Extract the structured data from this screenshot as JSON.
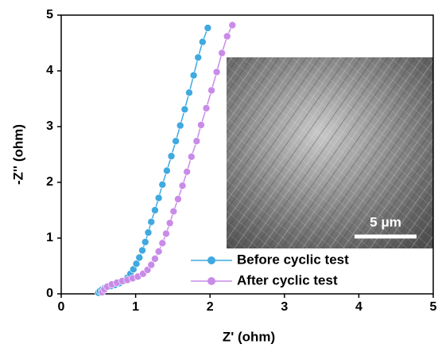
{
  "chart_data": {
    "type": "line",
    "x_label": "Z' (ohm)",
    "y_label": "-Z'' (ohm)",
    "xlim": [
      0,
      5
    ],
    "ylim": [
      0,
      5
    ],
    "xticks": [
      0,
      1,
      2,
      3,
      4,
      5
    ],
    "yticks": [
      0,
      1,
      2,
      3,
      4,
      5
    ],
    "legend": "lower right",
    "inset_scale_bar": "5 μm",
    "series": [
      {
        "name": "Before cyclic test",
        "color": "#3fa9e0",
        "x": [
          0.5,
          0.52,
          0.55,
          0.58,
          0.62,
          0.67,
          0.72,
          0.78,
          0.84,
          0.89,
          0.93,
          0.97,
          1.01,
          1.05,
          1.09,
          1.13,
          1.17,
          1.21,
          1.26,
          1.31,
          1.36,
          1.42,
          1.48,
          1.54,
          1.6,
          1.66,
          1.72,
          1.78,
          1.84,
          1.9,
          1.97
        ],
        "values": [
          0.02,
          0.05,
          0.08,
          0.1,
          0.12,
          0.14,
          0.16,
          0.19,
          0.23,
          0.29,
          0.36,
          0.44,
          0.54,
          0.65,
          0.78,
          0.93,
          1.1,
          1.29,
          1.5,
          1.72,
          1.96,
          2.21,
          2.47,
          2.74,
          3.02,
          3.31,
          3.61,
          3.92,
          4.24,
          4.52,
          4.77
        ]
      },
      {
        "name": "After cyclic test",
        "color": "#c98be8",
        "x": [
          0.55,
          0.58,
          0.62,
          0.68,
          0.75,
          0.82,
          0.89,
          0.96,
          1.03,
          1.1,
          1.16,
          1.21,
          1.26,
          1.31,
          1.36,
          1.41,
          1.46,
          1.51,
          1.57,
          1.63,
          1.69,
          1.75,
          1.82,
          1.88,
          1.95,
          2.02,
          2.09,
          2.16,
          2.23,
          2.3
        ],
        "values": [
          0.03,
          0.08,
          0.13,
          0.17,
          0.2,
          0.23,
          0.25,
          0.28,
          0.31,
          0.36,
          0.43,
          0.52,
          0.63,
          0.76,
          0.91,
          1.08,
          1.27,
          1.48,
          1.7,
          1.94,
          2.19,
          2.46,
          2.74,
          3.03,
          3.33,
          3.65,
          3.98,
          4.32,
          4.62,
          4.82
        ]
      }
    ]
  }
}
